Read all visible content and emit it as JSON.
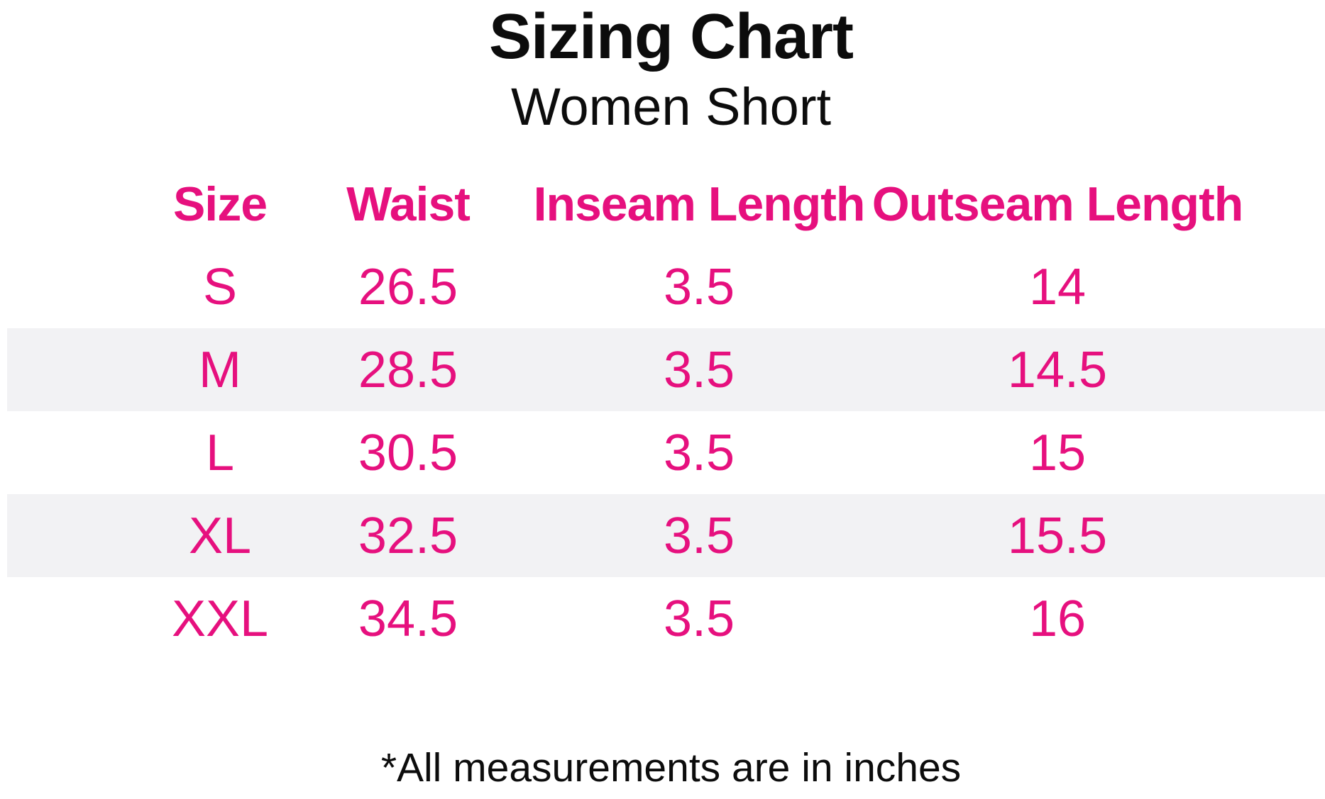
{
  "page": {
    "title": "Sizing Chart",
    "subtitle": "Women Short",
    "footnote": "*All measurements are in inches"
  },
  "colors": {
    "accent_pink": "#e6107e",
    "stripe_gray": "#f2f2f4",
    "text_black": "#0c0c0c",
    "background": "#ffffff"
  },
  "chart_data": {
    "type": "table",
    "title": "Sizing Chart",
    "subtitle": "Women Short",
    "columns": [
      "Size",
      "Waist",
      "Inseam Length",
      "Outseam Length"
    ],
    "rows": [
      [
        "S",
        "26.5",
        "3.5",
        "14"
      ],
      [
        "M",
        "28.5",
        "3.5",
        "14.5"
      ],
      [
        "L",
        "30.5",
        "3.5",
        "15"
      ],
      [
        "XL",
        "32.5",
        "3.5",
        "15.5"
      ],
      [
        "XXL",
        "34.5",
        "3.5",
        "16"
      ]
    ],
    "units_note": "*All measurements are in inches",
    "layout_hints": {
      "header_background": "#f2f2f4",
      "row_striping": "white, gray alternating starting white",
      "text_color_cells": "#e6107e",
      "grid_lines": "off"
    }
  }
}
